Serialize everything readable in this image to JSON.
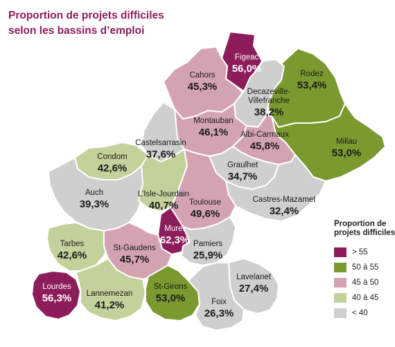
{
  "title": {
    "line1": "Proportion de projets difficiles",
    "line2": "selon les bassins d’emploi"
  },
  "legend": {
    "title_line1": "Proportion de",
    "title_line2": "projets difficiles",
    "items": [
      {
        "label": "> 55",
        "color": "#8c1d5a"
      },
      {
        "label": "50 à 55",
        "color": "#7a9a2f"
      },
      {
        "label": "45 à 50",
        "color": "#d3a3b1"
      },
      {
        "label": "40 à 45",
        "color": "#c3d19a"
      },
      {
        "label": "< 40",
        "color": "#cfcfcf"
      }
    ]
  },
  "regions": [
    {
      "name": "Figeac",
      "value": "56,0%",
      "category": "> 55"
    },
    {
      "name": "Cahors",
      "value": "45,3%",
      "category": "45 à 50"
    },
    {
      "name": "Rodez",
      "value": "53,4%",
      "category": "50 à 55"
    },
    {
      "name": "Decazeville-Villefranche",
      "value": "38,2%",
      "category": "< 40"
    },
    {
      "name": "Millau",
      "value": "53,0%",
      "category": "50 à 55"
    },
    {
      "name": "Montauban",
      "value": "46,1%",
      "category": "45 à 50"
    },
    {
      "name": "Albi-Carmaux",
      "value": "45,8%",
      "category": "45 à 50"
    },
    {
      "name": "Castelsarrasin",
      "value": "37,6%",
      "category": "< 40"
    },
    {
      "name": "Condom",
      "value": "42,6%",
      "category": "40 à 45"
    },
    {
      "name": "Graulhet",
      "value": "34,7%",
      "category": "< 40"
    },
    {
      "name": "Auch",
      "value": "39,3%",
      "category": "< 40"
    },
    {
      "name": "L’Isle-Jourdain",
      "value": "40,7%",
      "category": "40 à 45"
    },
    {
      "name": "Castres-Mazamet",
      "value": "32,4%",
      "category": "< 40"
    },
    {
      "name": "Toulouse",
      "value": "49,6%",
      "category": "45 à 50"
    },
    {
      "name": "Muret",
      "value": "62,3%",
      "category": "> 55"
    },
    {
      "name": "Tarbes",
      "value": "42,6%",
      "category": "40 à 45"
    },
    {
      "name": "St-Gaudens",
      "value": "45,7%",
      "category": "45 à 50"
    },
    {
      "name": "Pamiers",
      "value": "25,9%",
      "category": "< 40"
    },
    {
      "name": "Lourdes",
      "value": "56,3%",
      "category": "> 55"
    },
    {
      "name": "Lannemezan",
      "value": "41,2%",
      "category": "40 à 45"
    },
    {
      "name": "St-Girons",
      "value": "53,0%",
      "category": "50 à 55"
    },
    {
      "name": "Lavelanet",
      "value": "27,4%",
      "category": "< 40"
    },
    {
      "name": "Foix",
      "value": "26,3%",
      "category": "< 40"
    }
  ]
}
